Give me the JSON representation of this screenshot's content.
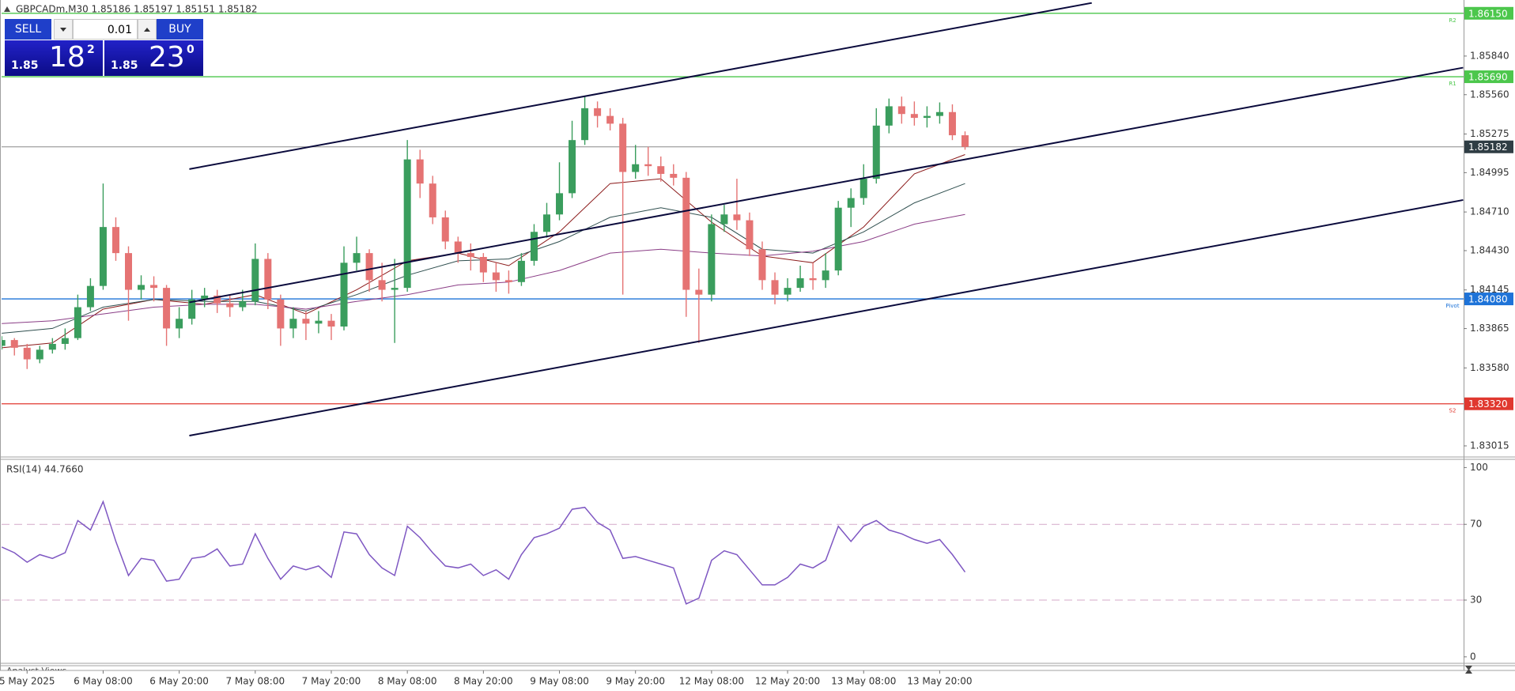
{
  "header": {
    "symbol_line": "GBPCADm,M30  1.85186 1.85197 1.85151 1.85182"
  },
  "trade_panel": {
    "sell": "SELL",
    "buy": "BUY",
    "volume": "0.01",
    "bid_big": "1.85",
    "bid_pips": "18",
    "bid_frac": "2",
    "ask_big": "1.85",
    "ask_pips": "23",
    "ask_frac": "0"
  },
  "footer_tab": "Analyst Views",
  "chart_data": [
    {
      "type": "candlestick",
      "up_color": "#3a9d5d",
      "down_color": "#e57373",
      "categories": [
        null,
        null,
        "5 May 2025",
        null,
        null,
        null,
        null,
        null,
        "6 May 08:00",
        null,
        null,
        null,
        null,
        null,
        "6 May 20:00",
        null,
        null,
        null,
        null,
        null,
        "7 May 08:00",
        null,
        null,
        null,
        null,
        null,
        "7 May 20:00",
        null,
        null,
        null,
        null,
        null,
        "8 May 08:00",
        null,
        null,
        null,
        null,
        null,
        "8 May 20:00",
        null,
        null,
        null,
        null,
        null,
        "9 May 08:00",
        null,
        null,
        null,
        null,
        null,
        "9 May 20:00",
        null,
        null,
        null,
        null,
        null,
        "12 May 08:00",
        null,
        null,
        null,
        null,
        null,
        "12 May 20:00",
        null,
        null,
        null,
        null,
        null,
        "13 May 08:00",
        null,
        null,
        null,
        null,
        null,
        "13 May 20:00",
        null,
        null
      ],
      "open": [
        1.8374,
        1.83782,
        1.83726,
        1.83642,
        1.83712,
        1.83754,
        1.83796,
        1.8402,
        1.84174,
        1.84601,
        1.84412,
        1.84146,
        1.84181,
        1.8416,
        1.83866,
        1.83936,
        1.84076,
        1.84104,
        1.84048,
        1.8402,
        1.84062,
        1.8437,
        1.84076,
        1.83866,
        1.83936,
        1.83901,
        1.83922,
        1.8388,
        1.84342,
        1.84412,
        1.84216,
        1.84146,
        1.8416,
        1.85091,
        1.84916,
        1.84671,
        1.84496,
        1.84412,
        1.84384,
        1.84272,
        1.84216,
        1.84202,
        1.84356,
        1.84566,
        1.84692,
        1.84846,
        1.85231,
        1.85462,
        1.85406,
        1.8535,
        1.85,
        1.85056,
        1.85042,
        1.84986,
        1.84958,
        1.84146,
        1.84111,
        1.84622,
        1.84692,
        1.8465,
        1.8444,
        1.84216,
        1.84111,
        1.8416,
        1.8423,
        1.84216,
        1.84286,
        1.84741,
        1.84811,
        1.84951,
        1.85336,
        1.85476,
        1.8542,
        1.85392,
        1.85406,
        1.85434,
        1.85266
      ],
      "high": [
        1.8381,
        1.83796,
        1.83754,
        1.8374,
        1.83796,
        1.83866,
        1.84111,
        1.8423,
        1.84916,
        1.84671,
        1.84461,
        1.84251,
        1.84244,
        1.84181,
        1.8402,
        1.84146,
        1.8416,
        1.84146,
        1.84111,
        1.84146,
        1.84482,
        1.84412,
        1.84111,
        1.8402,
        1.83992,
        1.83992,
        1.83971,
        1.84461,
        1.84531,
        1.8444,
        1.84342,
        1.8437,
        1.85231,
        1.85161,
        1.84972,
        1.8472,
        1.84531,
        1.84482,
        1.84412,
        1.84342,
        1.84286,
        1.84412,
        1.84622,
        1.84776,
        1.8507,
        1.85371,
        1.85546,
        1.85511,
        1.85462,
        1.85392,
        1.85196,
        1.85182,
        1.85112,
        1.85056,
        1.85,
        1.843,
        1.84692,
        1.84762,
        1.84951,
        1.84706,
        1.84496,
        1.84272,
        1.8423,
        1.84321,
        1.84342,
        1.84412,
        1.8479,
        1.84881,
        1.85056,
        1.85462,
        1.85532,
        1.85546,
        1.85511,
        1.85476,
        1.85504,
        1.8549,
        1.85294
      ],
      "low": [
        1.83712,
        1.8367,
        1.83572,
        1.83614,
        1.83684,
        1.83712,
        1.83782,
        1.83992,
        1.84146,
        1.84356,
        1.83922,
        1.84076,
        1.84062,
        1.8374,
        1.83796,
        1.83894,
        1.8402,
        1.83978,
        1.8395,
        1.83992,
        1.84034,
        1.84006,
        1.8374,
        1.83796,
        1.83782,
        1.83831,
        1.83782,
        1.83852,
        1.84286,
        1.84132,
        1.84062,
        1.83761,
        1.84132,
        1.84811,
        1.84622,
        1.8444,
        1.84342,
        1.84286,
        1.84202,
        1.84132,
        1.84118,
        1.84174,
        1.84321,
        1.84524,
        1.8465,
        1.84811,
        1.85196,
        1.85322,
        1.85301,
        1.84111,
        1.84951,
        1.84972,
        1.8493,
        1.84902,
        1.8395,
        1.83761,
        1.84062,
        1.84566,
        1.8458,
        1.84391,
        1.84146,
        1.84041,
        1.84062,
        1.84132,
        1.84146,
        1.8416,
        1.84251,
        1.84601,
        1.84762,
        1.84916,
        1.8528,
        1.8535,
        1.85336,
        1.85322,
        1.8535,
        1.85231,
        1.85161
      ],
      "close": [
        1.83782,
        1.83726,
        1.83642,
        1.83712,
        1.83754,
        1.83796,
        1.8402,
        1.84174,
        1.84601,
        1.84412,
        1.84146,
        1.84181,
        1.8416,
        1.83866,
        1.83936,
        1.84076,
        1.84104,
        1.84048,
        1.8402,
        1.84062,
        1.8437,
        1.84076,
        1.83866,
        1.83936,
        1.83901,
        1.83922,
        1.8388,
        1.84342,
        1.84412,
        1.84216,
        1.84146,
        1.8416,
        1.85091,
        1.84916,
        1.84671,
        1.84496,
        1.84412,
        1.84384,
        1.84272,
        1.84216,
        1.84202,
        1.84356,
        1.84566,
        1.84692,
        1.84846,
        1.85231,
        1.85462,
        1.85406,
        1.8535,
        1.85,
        1.85056,
        1.85042,
        1.84986,
        1.84958,
        1.84146,
        1.84111,
        1.84622,
        1.84692,
        1.8465,
        1.8444,
        1.84216,
        1.84111,
        1.8416,
        1.8423,
        1.84216,
        1.84286,
        1.84741,
        1.84811,
        1.84951,
        1.85336,
        1.85476,
        1.8542,
        1.85392,
        1.85406,
        1.85434,
        1.85266,
        1.85182
      ],
      "moving_averages": [
        {
          "color": "#8b1a1a",
          "x": [
            0,
            4,
            8,
            12,
            16,
            20,
            24,
            28,
            32,
            36,
            40,
            44,
            48,
            52,
            56,
            60,
            64,
            68,
            72,
            76
          ],
          "values": [
            1.83726,
            1.83761,
            1.84006,
            1.84076,
            1.84041,
            1.84111,
            1.83971,
            1.84146,
            1.84356,
            1.84412,
            1.84321,
            1.84566,
            1.84916,
            1.84951,
            1.84636,
            1.84391,
            1.84342,
            1.84601,
            1.84986,
            1.85126
          ]
        },
        {
          "color": "#2f4f4f",
          "x": [
            0,
            4,
            8,
            12,
            16,
            20,
            24,
            28,
            32,
            36,
            40,
            44,
            48,
            52,
            56,
            60,
            64,
            68,
            72,
            76
          ],
          "values": [
            1.83831,
            1.83866,
            1.8402,
            1.84076,
            1.84062,
            1.84062,
            1.83992,
            1.84111,
            1.84251,
            1.84356,
            1.8437,
            1.84496,
            1.84671,
            1.84741,
            1.84671,
            1.8444,
            1.84412,
            1.84566,
            1.84776,
            1.84916
          ]
        },
        {
          "color": "#8a3d86",
          "x": [
            0,
            4,
            8,
            12,
            16,
            20,
            24,
            28,
            32,
            36,
            40,
            44,
            48,
            52,
            56,
            60,
            64,
            68,
            72,
            76
          ],
          "values": [
            1.83901,
            1.83922,
            1.83971,
            1.8402,
            1.84041,
            1.84041,
            1.84006,
            1.84062,
            1.84111,
            1.84181,
            1.84202,
            1.84286,
            1.84412,
            1.8444,
            1.84412,
            1.84391,
            1.84426,
            1.84496,
            1.84622,
            1.84692
          ]
        }
      ],
      "trendlines": [
        {
          "color": "#0a0a3c",
          "x": [
            14.8,
            86.0
          ],
          "values": [
            1.85021,
            1.86225
          ]
        },
        {
          "color": "#0a0a3c",
          "x": [
            14.8,
            115.3
          ],
          "values": [
            1.84055,
            1.85756
          ]
        },
        {
          "color": "#0a0a3c",
          "x": [
            14.8,
            115.3
          ],
          "values": [
            1.83089,
            1.84797
          ]
        }
      ],
      "levels": [
        {
          "name": "R2",
          "value": 1.8615,
          "value_label": "1.86150",
          "color": "#4cc74c"
        },
        {
          "name": "R1",
          "value": 1.8569,
          "value_label": "1.85690",
          "color": "#4cc74c"
        },
        {
          "name": "Pivot",
          "value": 1.8408,
          "value_label": "1.84080",
          "color": "#1e73d8"
        },
        {
          "name": "S2",
          "value": 1.8332,
          "value_label": "1.83320",
          "color": "#e0382f"
        },
        {
          "value": 1.85182,
          "color": "#8a8a8a",
          "box_color": "#2f3d44"
        }
      ],
      "ylim": [
        1.82946,
        1.86229
      ],
      "yticks": [
        1.83015,
        {
          "value": 1.8358,
          "label": "1.83580"
        },
        1.83865,
        1.84145,
        {
          "value": 1.8443,
          "label": "1.84430"
        },
        {
          "value": 1.8471,
          "label": "1.84710"
        },
        1.84995,
        1.85275,
        {
          "value": 1.8556,
          "label": "1.85560"
        },
        {
          "value": 1.8584,
          "label": "1.85840"
        }
      ]
    },
    {
      "type": "line",
      "title": "RSI(14) 44.7660",
      "color": "#7e57c2",
      "values": [
        58,
        55,
        50,
        54,
        52,
        55,
        72,
        67,
        82,
        61,
        43,
        52,
        51,
        40,
        41,
        52,
        53,
        57,
        48,
        49,
        65,
        52,
        41,
        48,
        46,
        48,
        42,
        66,
        65,
        54,
        47,
        43,
        69,
        63,
        55,
        48,
        47,
        49,
        43,
        46,
        41,
        54,
        63,
        65,
        68,
        78,
        79,
        71,
        67,
        52,
        53,
        51,
        49,
        47,
        28,
        31,
        51,
        56,
        54,
        46,
        38,
        38,
        42,
        49,
        47,
        51,
        69,
        61,
        69,
        72,
        67,
        65,
        62,
        60,
        62,
        54,
        44.766
      ],
      "ylim": [
        -3,
        103.5
      ],
      "yticks": [
        0,
        30,
        70,
        100
      ]
    }
  ]
}
